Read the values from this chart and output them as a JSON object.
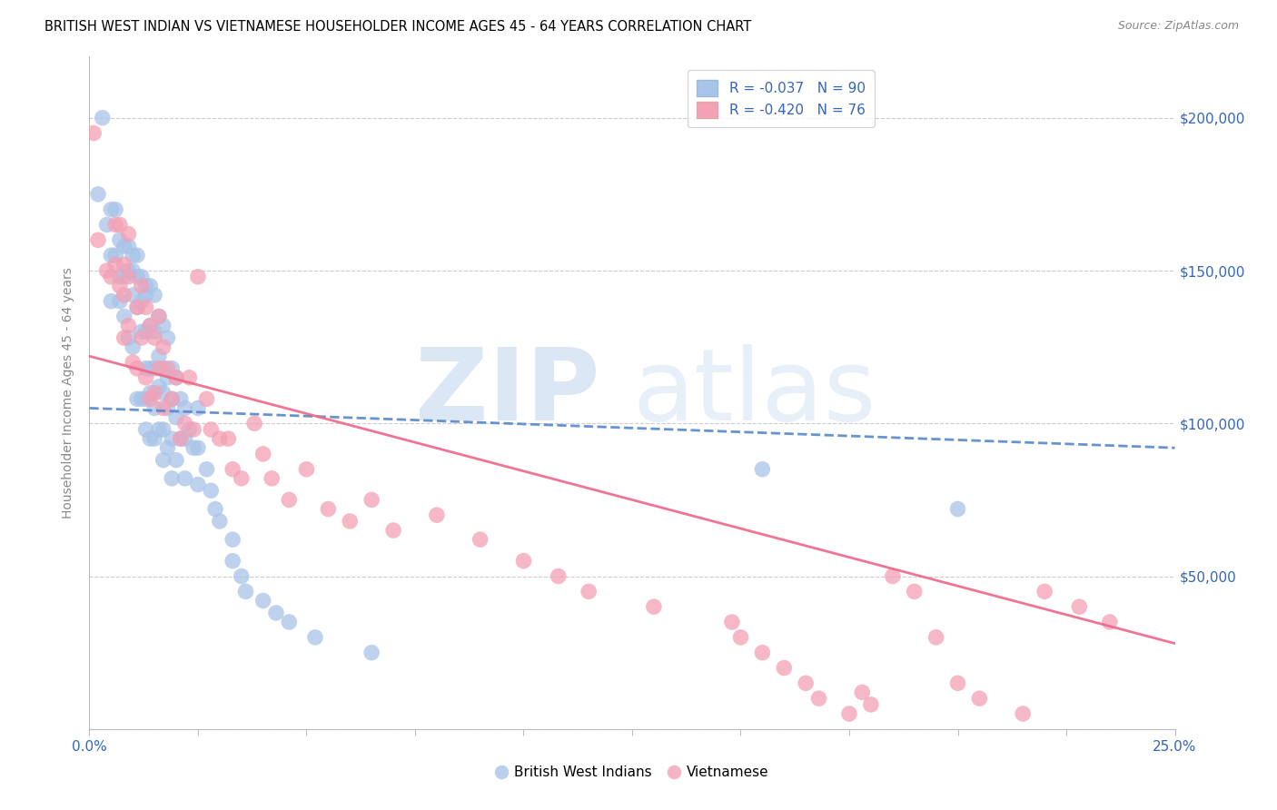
{
  "title": "BRITISH WEST INDIAN VS VIETNAMESE HOUSEHOLDER INCOME AGES 45 - 64 YEARS CORRELATION CHART",
  "source": "Source: ZipAtlas.com",
  "ylabel": "Householder Income Ages 45 - 64 years",
  "xlim": [
    0.0,
    0.25
  ],
  "ylim": [
    0,
    220000
  ],
  "xticks": [
    0.0,
    0.025,
    0.05,
    0.075,
    0.1,
    0.125,
    0.15,
    0.175,
    0.2,
    0.225,
    0.25
  ],
  "xticklabels": [
    "0.0%",
    "",
    "",
    "",
    "",
    "",
    "",
    "",
    "",
    "",
    "25.0%"
  ],
  "yticks": [
    0,
    50000,
    100000,
    150000,
    200000
  ],
  "yticklabels": [
    "",
    "$50,000",
    "$100,000",
    "$150,000",
    "$200,000"
  ],
  "bwi_color": "#a8c4e8",
  "viet_color": "#f4a0b5",
  "bwi_line_color": "#5588cc",
  "viet_line_color": "#ee6688",
  "watermark_zip": "ZIP",
  "watermark_atlas": "atlas",
  "bwi_x": [
    0.002,
    0.003,
    0.004,
    0.005,
    0.005,
    0.005,
    0.006,
    0.006,
    0.007,
    0.007,
    0.007,
    0.008,
    0.008,
    0.008,
    0.009,
    0.009,
    0.009,
    0.01,
    0.01,
    0.01,
    0.01,
    0.011,
    0.011,
    0.011,
    0.011,
    0.012,
    0.012,
    0.012,
    0.012,
    0.013,
    0.013,
    0.013,
    0.013,
    0.013,
    0.013,
    0.014,
    0.014,
    0.014,
    0.014,
    0.014,
    0.015,
    0.015,
    0.015,
    0.015,
    0.015,
    0.016,
    0.016,
    0.016,
    0.016,
    0.017,
    0.017,
    0.017,
    0.017,
    0.017,
    0.018,
    0.018,
    0.018,
    0.018,
    0.019,
    0.019,
    0.019,
    0.019,
    0.02,
    0.02,
    0.02,
    0.021,
    0.021,
    0.022,
    0.022,
    0.022,
    0.023,
    0.024,
    0.025,
    0.025,
    0.025,
    0.027,
    0.028,
    0.029,
    0.03,
    0.033,
    0.033,
    0.035,
    0.036,
    0.04,
    0.043,
    0.046,
    0.052,
    0.065,
    0.155,
    0.2
  ],
  "bwi_y": [
    175000,
    200000,
    165000,
    170000,
    155000,
    140000,
    170000,
    155000,
    160000,
    148000,
    140000,
    158000,
    148000,
    135000,
    158000,
    150000,
    128000,
    155000,
    150000,
    142000,
    125000,
    155000,
    148000,
    138000,
    108000,
    148000,
    140000,
    130000,
    108000,
    145000,
    142000,
    130000,
    118000,
    108000,
    98000,
    145000,
    132000,
    118000,
    110000,
    95000,
    142000,
    130000,
    118000,
    105000,
    95000,
    135000,
    122000,
    112000,
    98000,
    132000,
    118000,
    110000,
    98000,
    88000,
    128000,
    115000,
    105000,
    92000,
    118000,
    108000,
    95000,
    82000,
    115000,
    102000,
    88000,
    108000,
    95000,
    105000,
    95000,
    82000,
    98000,
    92000,
    105000,
    92000,
    80000,
    85000,
    78000,
    72000,
    68000,
    62000,
    55000,
    50000,
    45000,
    42000,
    38000,
    35000,
    30000,
    25000,
    85000,
    72000
  ],
  "viet_x": [
    0.001,
    0.002,
    0.004,
    0.005,
    0.006,
    0.006,
    0.007,
    0.007,
    0.008,
    0.008,
    0.008,
    0.009,
    0.009,
    0.009,
    0.01,
    0.011,
    0.011,
    0.012,
    0.012,
    0.013,
    0.013,
    0.014,
    0.014,
    0.015,
    0.015,
    0.016,
    0.016,
    0.017,
    0.017,
    0.018,
    0.019,
    0.02,
    0.021,
    0.022,
    0.023,
    0.024,
    0.025,
    0.027,
    0.028,
    0.03,
    0.032,
    0.033,
    0.035,
    0.038,
    0.04,
    0.042,
    0.046,
    0.05,
    0.055,
    0.06,
    0.065,
    0.07,
    0.08,
    0.09,
    0.1,
    0.108,
    0.115,
    0.13,
    0.148,
    0.15,
    0.155,
    0.16,
    0.165,
    0.168,
    0.175,
    0.178,
    0.18,
    0.185,
    0.19,
    0.195,
    0.2,
    0.205,
    0.215,
    0.22,
    0.228,
    0.235
  ],
  "viet_y": [
    195000,
    160000,
    150000,
    148000,
    165000,
    152000,
    165000,
    145000,
    152000,
    142000,
    128000,
    162000,
    148000,
    132000,
    120000,
    138000,
    118000,
    145000,
    128000,
    138000,
    115000,
    132000,
    108000,
    128000,
    110000,
    135000,
    118000,
    125000,
    105000,
    118000,
    108000,
    115000,
    95000,
    100000,
    115000,
    98000,
    148000,
    108000,
    98000,
    95000,
    95000,
    85000,
    82000,
    100000,
    90000,
    82000,
    75000,
    85000,
    72000,
    68000,
    75000,
    65000,
    70000,
    62000,
    55000,
    50000,
    45000,
    40000,
    35000,
    30000,
    25000,
    20000,
    15000,
    10000,
    5000,
    12000,
    8000,
    50000,
    45000,
    30000,
    15000,
    10000,
    5000,
    45000,
    40000,
    35000
  ]
}
